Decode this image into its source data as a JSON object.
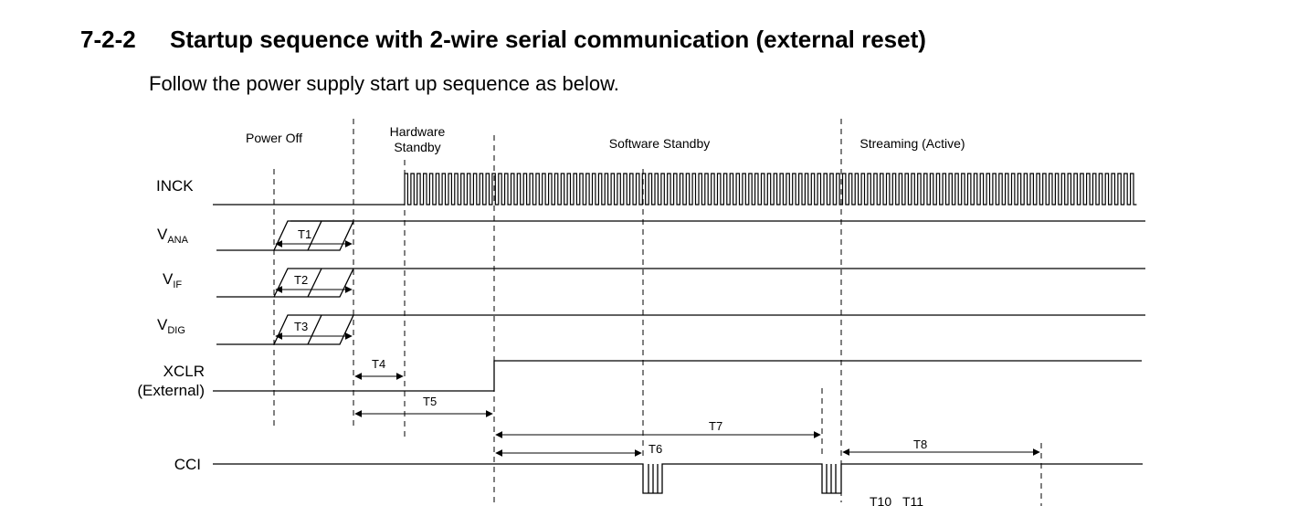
{
  "section": {
    "number": "7-2-2",
    "title": "Startup sequence with 2-wire serial communication (external reset)"
  },
  "intro_text": "Follow the power supply start up sequence as below.",
  "phases": {
    "power_off": "Power Off",
    "hardware_standby_line1": "Hardware",
    "hardware_standby_line2": "Standby",
    "software_standby": "Software Standby",
    "streaming": "Streaming (Active)"
  },
  "signals": {
    "inck": "INCK",
    "vana_base": "V",
    "vana_sub": "ANA",
    "vif_base": "V",
    "vif_sub": "IF",
    "vdig_base": "V",
    "vdig_sub": "DIG",
    "xclr_line1": "XCLR",
    "xclr_line2": "(External)",
    "cci": "CCI"
  },
  "timings": {
    "t1": "T1",
    "t2": "T2",
    "t3": "T3",
    "t4": "T4",
    "t5": "T5",
    "t6": "T6",
    "t7": "T7",
    "t8": "T8",
    "t10": "T10",
    "t11": "T11"
  }
}
